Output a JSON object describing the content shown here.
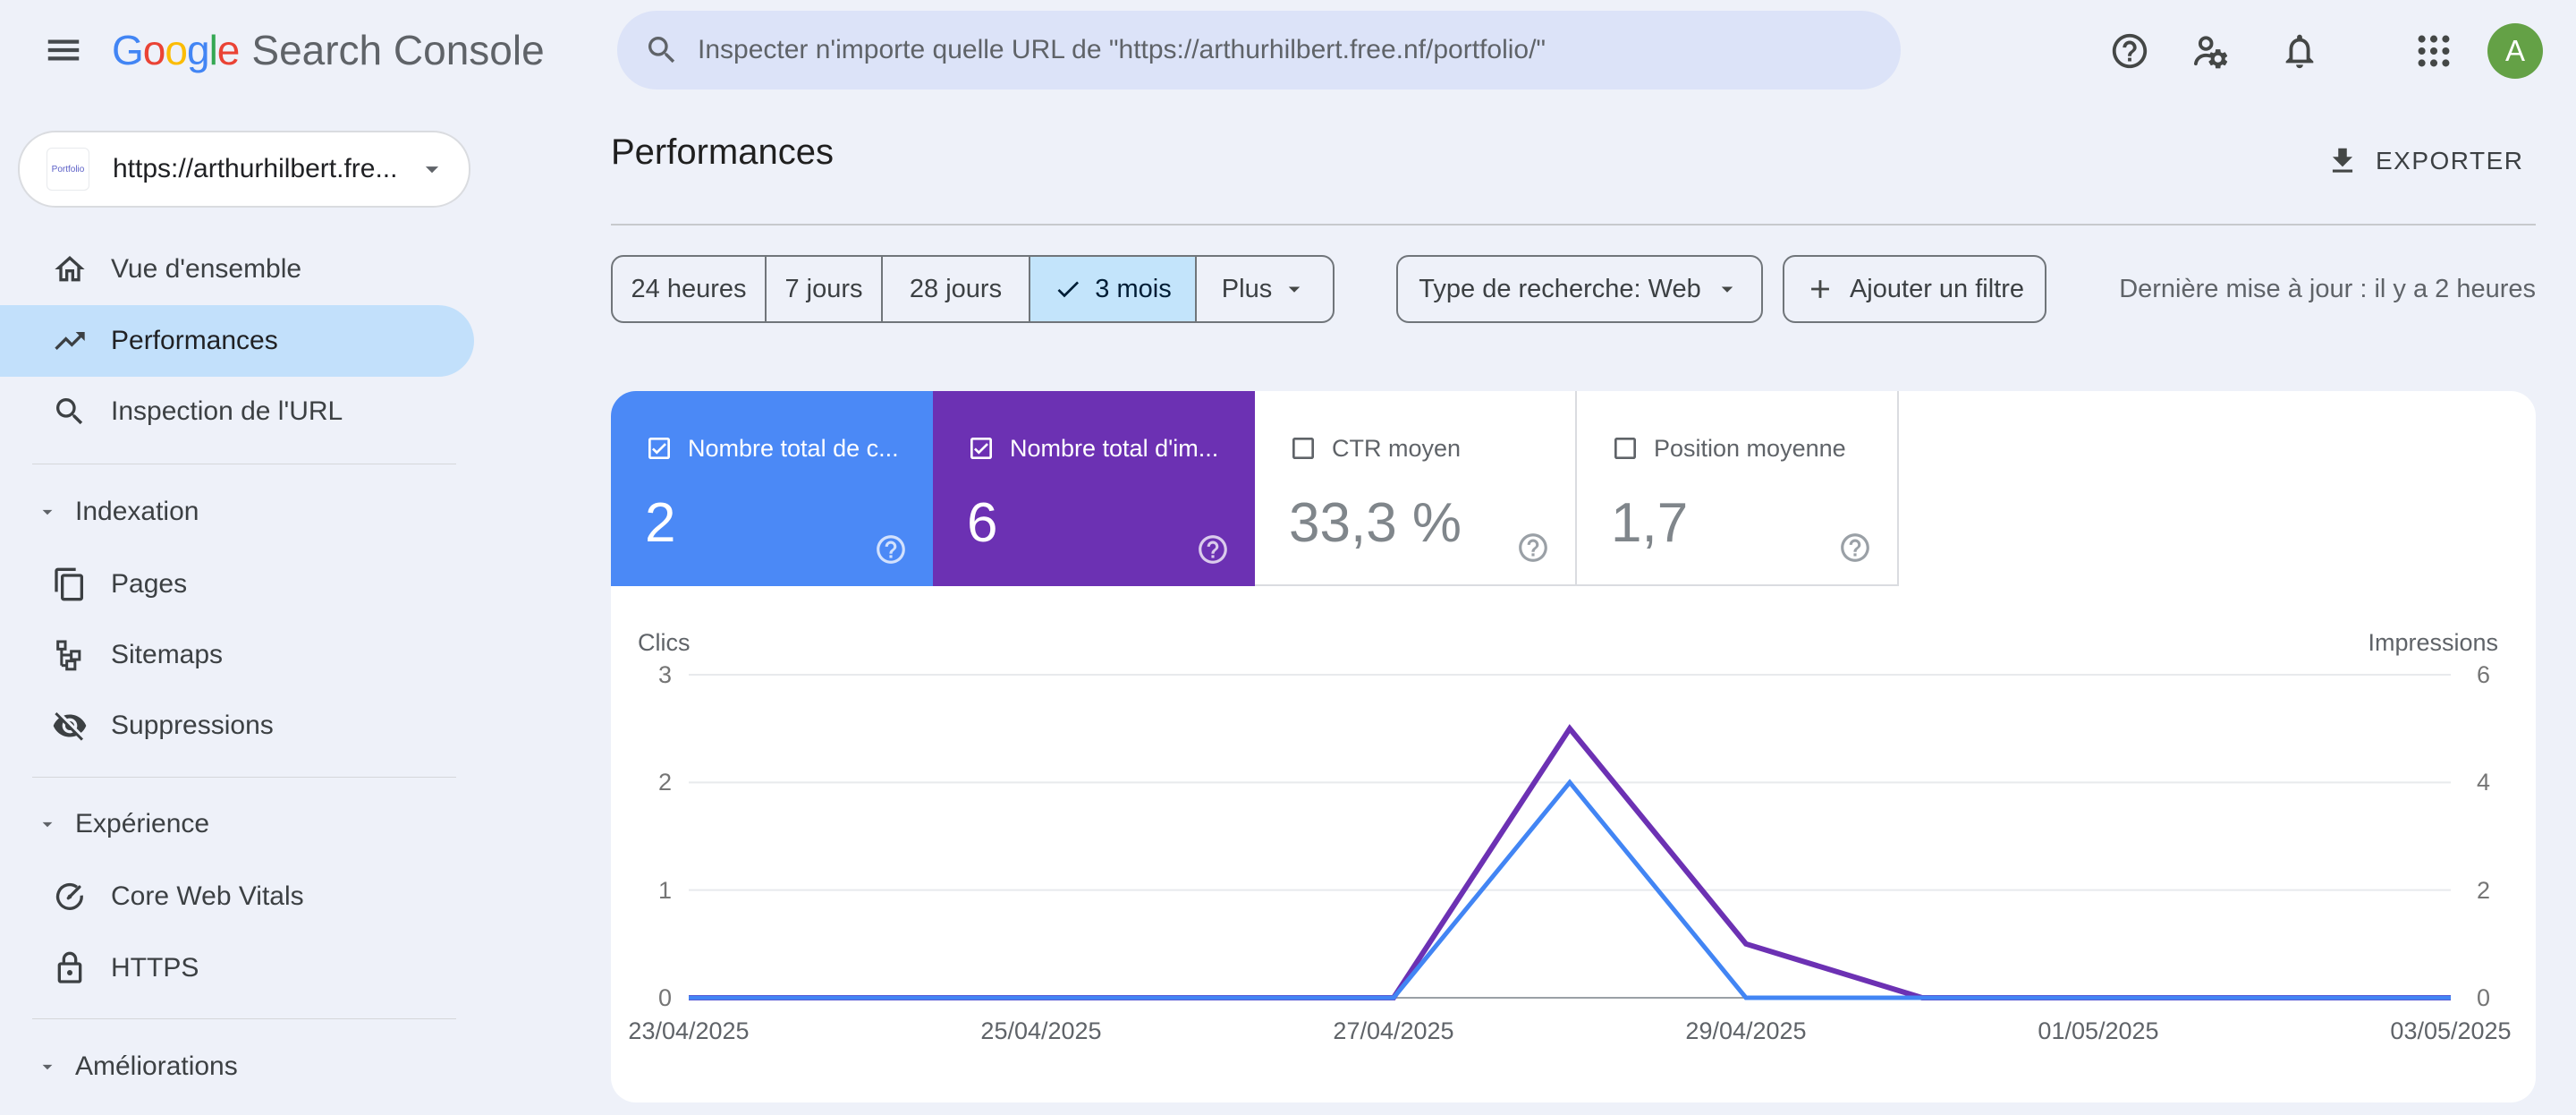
{
  "topbar": {
    "brand": {
      "letters": [
        {
          "ch": "G",
          "color": "#4285F4"
        },
        {
          "ch": "o",
          "color": "#EA4335"
        },
        {
          "ch": "o",
          "color": "#FBBC05"
        },
        {
          "ch": "g",
          "color": "#4285F4"
        },
        {
          "ch": "l",
          "color": "#34A853"
        },
        {
          "ch": "e",
          "color": "#EA4335"
        }
      ],
      "suffix": "Search Console"
    },
    "search_placeholder": "Inspecter n'importe quelle URL de \"https://arthurhilbert.free.nf/portfolio/\"",
    "avatar": {
      "letter": "A",
      "color": "#64a146"
    }
  },
  "sidebar": {
    "property": {
      "label": "https://arthurhilbert.fre...",
      "favicon_text": "Portfolio"
    },
    "items": [
      {
        "label": "Vue d'ensemble",
        "icon": "home-icon",
        "selected": false
      },
      {
        "label": "Performances",
        "icon": "trending-up-icon",
        "selected": true
      },
      {
        "label": "Inspection de l'URL",
        "icon": "search-icon",
        "selected": false
      },
      {
        "label": "Pages",
        "icon": "pages-icon",
        "selected": false
      },
      {
        "label": "Sitemaps",
        "icon": "sitemap-icon",
        "selected": false
      },
      {
        "label": "Suppressions",
        "icon": "eye-off-icon",
        "selected": false
      },
      {
        "label": "Core Web Vitals",
        "icon": "speed-icon",
        "selected": false
      },
      {
        "label": "HTTPS",
        "icon": "lock-icon",
        "selected": false
      }
    ],
    "sections": [
      {
        "label": "Indexation"
      },
      {
        "label": "Expérience"
      },
      {
        "label": "Améliorations"
      }
    ]
  },
  "header": {
    "title": "Performances",
    "export_label": "EXPORTER"
  },
  "filters": {
    "date_ranges": [
      "24 heures",
      "7 jours",
      "28 jours",
      "3 mois",
      "Plus"
    ],
    "selected_range": "3 mois",
    "search_type": "Type de recherche: Web",
    "add_filter_label": "Ajouter un filtre",
    "last_update": "Dernière mise à jour : il y a 2 heures"
  },
  "metrics": {
    "cards": [
      {
        "label": "Nombre total de c...",
        "value": "2",
        "checked": true,
        "color": "#4b89f6"
      },
      {
        "label": "Nombre total d'im...",
        "value": "6",
        "checked": true,
        "color": "#6c31b3"
      },
      {
        "label": "CTR moyen",
        "value": "33,3 %",
        "checked": false,
        "color": "#ffffff"
      },
      {
        "label": "Position moyenne",
        "value": "1,7",
        "checked": false,
        "color": "#ffffff"
      }
    ]
  },
  "chart_data": {
    "type": "line",
    "x": [
      "23/04/2025",
      "24/04/2025",
      "25/04/2025",
      "26/04/2025",
      "27/04/2025",
      "28/04/2025",
      "29/04/2025",
      "30/04/2025",
      "01/05/2025",
      "02/05/2025",
      "03/05/2025"
    ],
    "x_tick_labels": [
      "23/04/2025",
      "25/04/2025",
      "27/04/2025",
      "29/04/2025",
      "01/05/2025",
      "03/05/2025"
    ],
    "series": [
      {
        "name": "Clics",
        "color": "#4285f4",
        "axis": "left",
        "values": [
          0,
          0,
          0,
          0,
          0,
          2,
          0,
          0,
          0,
          0,
          0
        ]
      },
      {
        "name": "Impressions",
        "color": "#6c31b3",
        "axis": "right",
        "values": [
          0,
          0,
          0,
          0,
          0,
          5,
          1,
          0,
          0,
          0,
          0
        ]
      }
    ],
    "left_axis": {
      "label": "Clics",
      "ticks": [
        3,
        2,
        1,
        0
      ],
      "max": 3
    },
    "right_axis": {
      "label": "Impressions",
      "ticks": [
        6,
        4,
        2,
        0
      ],
      "max": 6
    },
    "grid": true,
    "legend_position": "none"
  }
}
